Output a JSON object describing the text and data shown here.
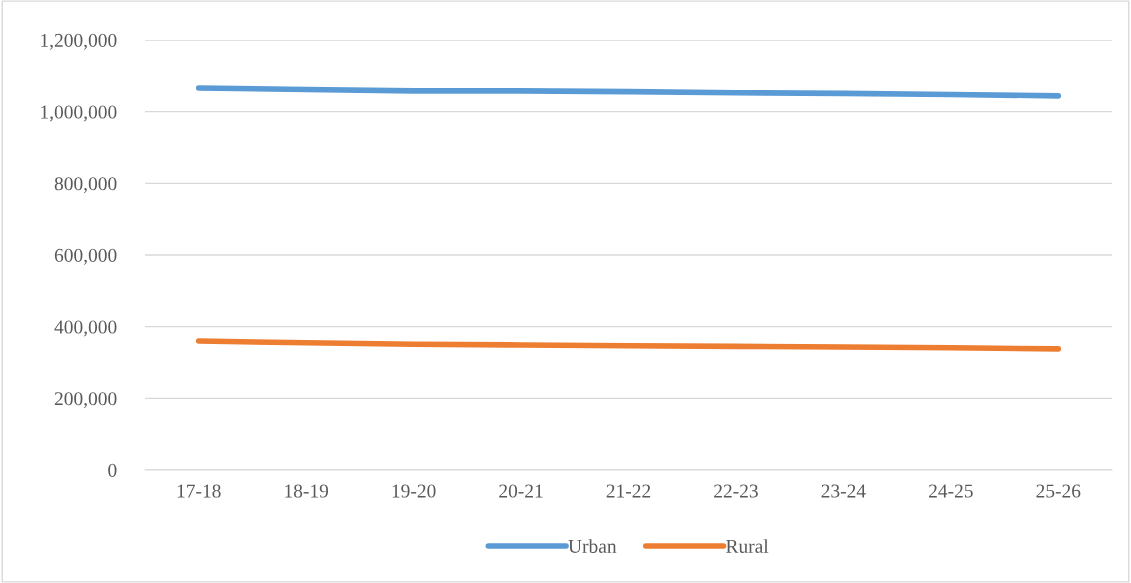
{
  "chart_data": {
    "type": "line",
    "categories": [
      "17-18",
      "18-19",
      "19-20",
      "20-21",
      "21-22",
      "22-23",
      "23-24",
      "24-25",
      "25-26"
    ],
    "series": [
      {
        "name": "Urban",
        "color": "#5b9bd5",
        "values": [
          1066000,
          1062000,
          1058000,
          1058000,
          1056000,
          1053000,
          1051000,
          1048000,
          1044000
        ]
      },
      {
        "name": "Rural",
        "color": "#ed7d31",
        "values": [
          360000,
          355000,
          351000,
          349000,
          347000,
          345000,
          343000,
          341000,
          338000
        ]
      }
    ],
    "ylim": [
      0,
      1200000
    ],
    "yticks": [
      {
        "value": 0,
        "label": "0"
      },
      {
        "value": 200000,
        "label": "200,000"
      },
      {
        "value": 400000,
        "label": "400,000"
      },
      {
        "value": 600000,
        "label": "600,000"
      },
      {
        "value": 800000,
        "label": "800,000"
      },
      {
        "value": 1000000,
        "label": "1,000,000"
      },
      {
        "value": 1200000,
        "label": "1,200,000"
      }
    ],
    "grid": "y",
    "legend": "bottom",
    "marker": "none",
    "line_style": "solid"
  }
}
